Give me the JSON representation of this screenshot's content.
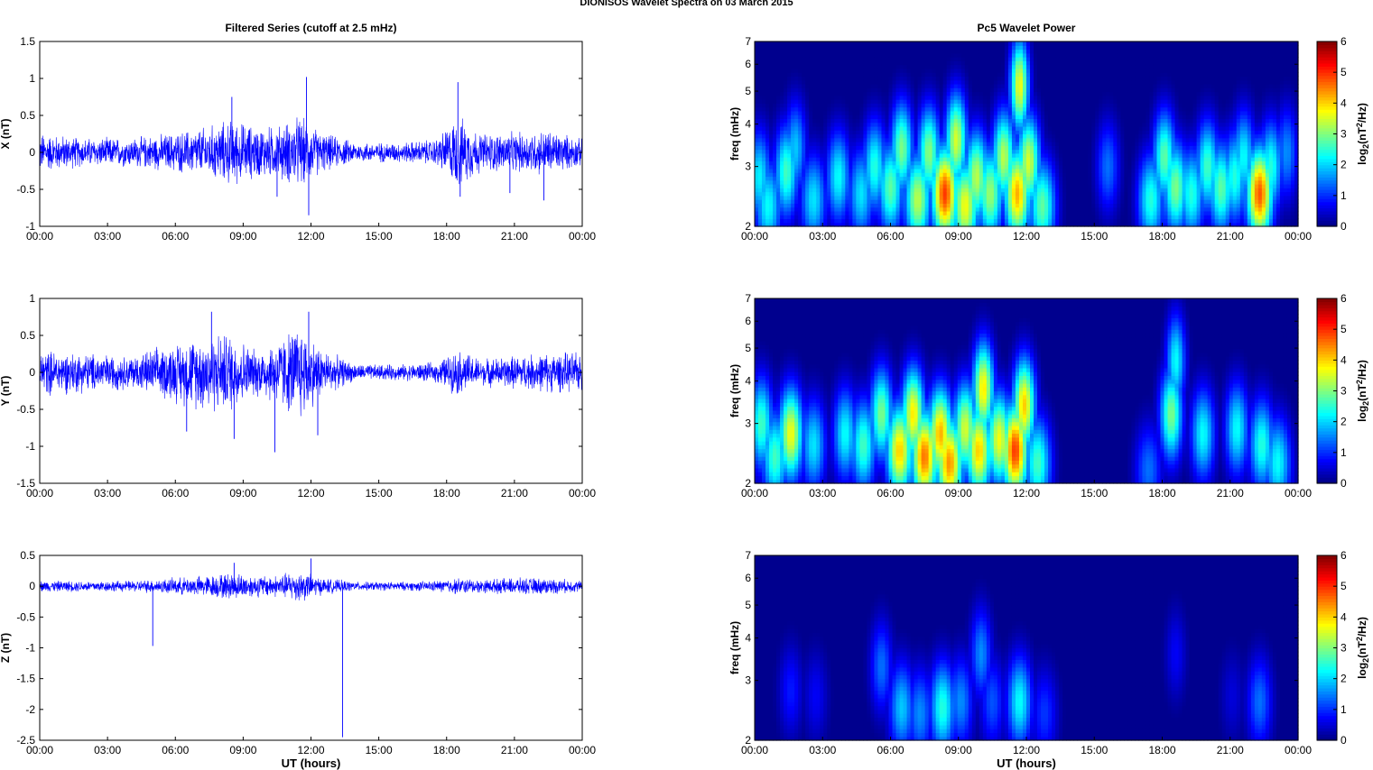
{
  "figure_title": "DIONISOS Wavelet Spectra on 03 March     2015",
  "left_title": "Filtered Series (cutoff at 2.5 mHz)",
  "right_title": "Pc5 Wavelet Power",
  "colors": {
    "trace": "#0000ff",
    "axis": "#000000",
    "background": "#ffffff"
  },
  "chart_data": [
    {
      "type": "line",
      "panel": "X",
      "ylabel": "X (nT)",
      "xlabel": "",
      "xlim": [
        0,
        24
      ],
      "ylim": [
        -1,
        1.5
      ],
      "xticks": [
        "00:00",
        "03:00",
        "06:00",
        "09:00",
        "12:00",
        "15:00",
        "18:00",
        "21:00",
        "00:00"
      ],
      "yticks": [
        "-1",
        "-0.5",
        "0",
        "0.5",
        "1",
        "1.5"
      ],
      "envelope": {
        "x": [
          0,
          2,
          4,
          6,
          7.5,
          8.5,
          9.5,
          10.5,
          11.5,
          12.5,
          14,
          16,
          17.5,
          18.5,
          19.5,
          21,
          22.5,
          24
        ],
        "amp": [
          0.3,
          0.22,
          0.22,
          0.3,
          0.4,
          0.5,
          0.4,
          0.4,
          0.55,
          0.3,
          0.15,
          0.15,
          0.2,
          0.55,
          0.3,
          0.3,
          0.35,
          0.2
        ]
      },
      "spikes": [
        {
          "x": 8.5,
          "y": 0.75
        },
        {
          "x": 10.5,
          "y": -0.6
        },
        {
          "x": 11.8,
          "y": 1.02
        },
        {
          "x": 11.9,
          "y": -0.85
        },
        {
          "x": 18.5,
          "y": 0.95
        },
        {
          "x": 18.6,
          "y": -0.6
        },
        {
          "x": 22.3,
          "y": -0.65
        },
        {
          "x": 20.8,
          "y": -0.55
        }
      ]
    },
    {
      "type": "line",
      "panel": "Y",
      "ylabel": "Y (nT)",
      "xlabel": "",
      "xlim": [
        0,
        24
      ],
      "ylim": [
        -1.5,
        1
      ],
      "xticks": [
        "00:00",
        "03:00",
        "06:00",
        "09:00",
        "12:00",
        "15:00",
        "18:00",
        "21:00",
        "00:00"
      ],
      "yticks": [
        "-1.5",
        "-1",
        "-0.5",
        "0",
        "0.5",
        "1"
      ],
      "envelope": {
        "x": [
          0,
          2,
          4,
          6,
          7.5,
          8.5,
          9.5,
          10.5,
          11.5,
          12.5,
          14,
          16,
          17.5,
          18.5,
          19.5,
          21,
          22.5,
          24
        ],
        "amp": [
          0.35,
          0.3,
          0.25,
          0.45,
          0.6,
          0.6,
          0.35,
          0.5,
          0.75,
          0.35,
          0.12,
          0.12,
          0.15,
          0.35,
          0.2,
          0.25,
          0.3,
          0.3
        ]
      },
      "spikes": [
        {
          "x": 7.6,
          "y": 0.82
        },
        {
          "x": 8.6,
          "y": -0.9
        },
        {
          "x": 10.4,
          "y": -1.08
        },
        {
          "x": 11.9,
          "y": 0.82
        },
        {
          "x": 6.5,
          "y": -0.8
        },
        {
          "x": 12.3,
          "y": -0.85
        }
      ]
    },
    {
      "type": "line",
      "panel": "Z",
      "ylabel": "Z (nT)",
      "xlabel": "UT (hours)",
      "xlim": [
        0,
        24
      ],
      "ylim": [
        -2.5,
        0.5
      ],
      "xticks": [
        "00:00",
        "03:00",
        "06:00",
        "09:00",
        "12:00",
        "15:00",
        "18:00",
        "21:00",
        "00:00"
      ],
      "yticks": [
        "-2.5",
        "-2",
        "-1.5",
        "-1",
        "-0.5",
        "0",
        "0.5"
      ],
      "envelope": {
        "x": [
          0,
          2,
          4,
          6,
          7.5,
          8.5,
          9.5,
          10.5,
          11.5,
          12.5,
          14,
          16,
          17.5,
          18.5,
          19.5,
          21,
          22.5,
          24
        ],
        "amp": [
          0.1,
          0.1,
          0.1,
          0.15,
          0.2,
          0.25,
          0.2,
          0.2,
          0.3,
          0.15,
          0.08,
          0.08,
          0.1,
          0.15,
          0.12,
          0.15,
          0.15,
          0.1
        ]
      },
      "spikes": [
        {
          "x": 5.0,
          "y": -0.97
        },
        {
          "x": 13.4,
          "y": -2.45
        },
        {
          "x": 8.6,
          "y": 0.38
        },
        {
          "x": 12.0,
          "y": 0.45
        }
      ]
    },
    {
      "type": "heatmap",
      "panel": "X",
      "ylabel": "freq (mHz)",
      "xlabel": "",
      "yscale": "log",
      "xlim": [
        0,
        24
      ],
      "ylim": [
        2,
        7
      ],
      "xticks": [
        "00:00",
        "03:00",
        "06:00",
        "09:00",
        "12:00",
        "15:00",
        "18:00",
        "21:00",
        "00:00"
      ],
      "yticks": [
        "2",
        "3",
        "4",
        "5",
        "6",
        "7"
      ],
      "colorbar": {
        "label": "log2(nT2/Hz)",
        "range": [
          0,
          6
        ],
        "ticks": [
          "0",
          "1",
          "2",
          "3",
          "4",
          "5",
          "6"
        ]
      },
      "blobs": [
        {
          "t": 0.2,
          "f": 2.8,
          "p": 2.5
        },
        {
          "t": 0.6,
          "f": 2.3,
          "p": 2.6
        },
        {
          "t": 1.4,
          "f": 2.9,
          "p": 3.0
        },
        {
          "t": 1.8,
          "f": 3.4,
          "p": 2.2
        },
        {
          "t": 2.6,
          "f": 2.4,
          "p": 2.4
        },
        {
          "t": 3.7,
          "f": 2.8,
          "p": 2.6
        },
        {
          "t": 4.7,
          "f": 2.5,
          "p": 2.4
        },
        {
          "t": 5.3,
          "f": 3.0,
          "p": 2.8
        },
        {
          "t": 6.0,
          "f": 2.6,
          "p": 3.2
        },
        {
          "t": 6.5,
          "f": 3.4,
          "p": 3.4
        },
        {
          "t": 7.2,
          "f": 2.4,
          "p": 3.8
        },
        {
          "t": 7.7,
          "f": 3.3,
          "p": 3.5
        },
        {
          "t": 8.4,
          "f": 2.5,
          "p": 5.6
        },
        {
          "t": 8.9,
          "f": 3.6,
          "p": 4.0
        },
        {
          "t": 9.3,
          "f": 2.3,
          "p": 4.2
        },
        {
          "t": 9.8,
          "f": 2.8,
          "p": 3.8
        },
        {
          "t": 10.4,
          "f": 2.5,
          "p": 3.6
        },
        {
          "t": 11.0,
          "f": 3.2,
          "p": 3.8
        },
        {
          "t": 11.6,
          "f": 2.5,
          "p": 4.8
        },
        {
          "t": 11.7,
          "f": 5.2,
          "p": 4.2
        },
        {
          "t": 12.1,
          "f": 3.1,
          "p": 4.0
        },
        {
          "t": 12.7,
          "f": 2.3,
          "p": 3.2
        },
        {
          "t": 15.6,
          "f": 3.0,
          "p": 1.6
        },
        {
          "t": 17.5,
          "f": 2.4,
          "p": 2.8
        },
        {
          "t": 18.1,
          "f": 3.2,
          "p": 3.2
        },
        {
          "t": 18.6,
          "f": 2.6,
          "p": 3.4
        },
        {
          "t": 19.3,
          "f": 2.5,
          "p": 2.8
        },
        {
          "t": 20.0,
          "f": 3.0,
          "p": 3.0
        },
        {
          "t": 20.6,
          "f": 2.6,
          "p": 3.2
        },
        {
          "t": 21.2,
          "f": 2.8,
          "p": 2.8
        },
        {
          "t": 21.6,
          "f": 3.2,
          "p": 2.6
        },
        {
          "t": 22.3,
          "f": 2.5,
          "p": 5.4
        },
        {
          "t": 22.8,
          "f": 3.0,
          "p": 2.8
        },
        {
          "t": 23.5,
          "f": 3.3,
          "p": 1.8
        }
      ]
    },
    {
      "type": "heatmap",
      "panel": "Y",
      "ylabel": "freq (mHz)",
      "xlabel": "",
      "yscale": "log",
      "xlim": [
        0,
        24
      ],
      "ylim": [
        2,
        7
      ],
      "xticks": [
        "00:00",
        "03:00",
        "06:00",
        "09:00",
        "12:00",
        "15:00",
        "18:00",
        "21:00",
        "00:00"
      ],
      "yticks": [
        "2",
        "3",
        "4",
        "5",
        "6",
        "7"
      ],
      "colorbar": {
        "label": "log2(nT2/Hz)",
        "range": [
          0,
          6
        ],
        "ticks": [
          "0",
          "1",
          "2",
          "3",
          "4",
          "5",
          "6"
        ]
      },
      "blobs": [
        {
          "t": 0.3,
          "f": 3.0,
          "p": 3.0
        },
        {
          "t": 0.9,
          "f": 2.4,
          "p": 3.0
        },
        {
          "t": 1.6,
          "f": 2.8,
          "p": 4.2
        },
        {
          "t": 2.6,
          "f": 2.6,
          "p": 2.4
        },
        {
          "t": 4.0,
          "f": 2.8,
          "p": 2.6
        },
        {
          "t": 4.8,
          "f": 2.6,
          "p": 3.0
        },
        {
          "t": 5.6,
          "f": 3.2,
          "p": 3.4
        },
        {
          "t": 6.4,
          "f": 2.5,
          "p": 4.6
        },
        {
          "t": 7.0,
          "f": 3.2,
          "p": 4.4
        },
        {
          "t": 7.5,
          "f": 2.4,
          "p": 5.2
        },
        {
          "t": 8.2,
          "f": 2.8,
          "p": 4.8
        },
        {
          "t": 8.6,
          "f": 2.3,
          "p": 5.0
        },
        {
          "t": 9.3,
          "f": 2.9,
          "p": 4.0
        },
        {
          "t": 9.9,
          "f": 2.5,
          "p": 4.6
        },
        {
          "t": 10.1,
          "f": 3.8,
          "p": 4.4
        },
        {
          "t": 10.8,
          "f": 2.7,
          "p": 4.2
        },
        {
          "t": 11.5,
          "f": 2.5,
          "p": 5.6
        },
        {
          "t": 11.9,
          "f": 3.4,
          "p": 4.6
        },
        {
          "t": 12.5,
          "f": 2.3,
          "p": 3.0
        },
        {
          "t": 17.4,
          "f": 2.2,
          "p": 1.6
        },
        {
          "t": 18.4,
          "f": 3.2,
          "p": 3.4
        },
        {
          "t": 18.6,
          "f": 4.6,
          "p": 2.6
        },
        {
          "t": 19.8,
          "f": 2.8,
          "p": 2.6
        },
        {
          "t": 21.3,
          "f": 2.9,
          "p": 2.6
        },
        {
          "t": 22.4,
          "f": 2.6,
          "p": 2.8
        },
        {
          "t": 23.1,
          "f": 2.3,
          "p": 2.6
        }
      ]
    },
    {
      "type": "heatmap",
      "panel": "Z",
      "ylabel": "freq (mHz)",
      "xlabel": "UT (hours)",
      "yscale": "log",
      "xlim": [
        0,
        24
      ],
      "ylim": [
        2,
        7
      ],
      "xticks": [
        "00:00",
        "03:00",
        "06:00",
        "09:00",
        "12:00",
        "15:00",
        "18:00",
        "21:00",
        "00:00"
      ],
      "yticks": [
        "2",
        "3",
        "4",
        "5",
        "6",
        "7"
      ],
      "colorbar": {
        "label": "log2(nT2/Hz)",
        "range": [
          0,
          6
        ],
        "ticks": [
          "0",
          "1",
          "2",
          "3",
          "4",
          "5",
          "6"
        ]
      },
      "blobs": [
        {
          "t": 1.6,
          "f": 2.8,
          "p": 1.0
        },
        {
          "t": 2.7,
          "f": 2.7,
          "p": 0.8
        },
        {
          "t": 5.6,
          "f": 3.3,
          "p": 1.6
        },
        {
          "t": 6.5,
          "f": 2.5,
          "p": 2.2
        },
        {
          "t": 7.3,
          "f": 2.4,
          "p": 1.8
        },
        {
          "t": 8.3,
          "f": 2.5,
          "p": 2.8
        },
        {
          "t": 9.1,
          "f": 2.6,
          "p": 1.8
        },
        {
          "t": 10.0,
          "f": 3.6,
          "p": 1.8
        },
        {
          "t": 10.5,
          "f": 2.6,
          "p": 1.4
        },
        {
          "t": 11.7,
          "f": 2.6,
          "p": 2.6
        },
        {
          "t": 12.8,
          "f": 2.4,
          "p": 1.2
        },
        {
          "t": 18.6,
          "f": 3.6,
          "p": 0.8
        },
        {
          "t": 22.3,
          "f": 2.6,
          "p": 1.6
        },
        {
          "t": 21.1,
          "f": 2.7,
          "p": 0.6
        }
      ]
    }
  ]
}
